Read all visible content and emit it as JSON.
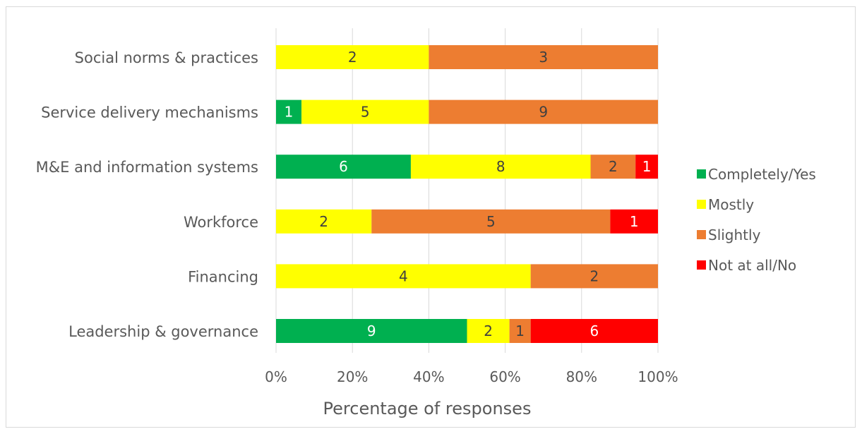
{
  "chart_data": {
    "type": "bar",
    "orientation": "horizontal",
    "stacking": "percent",
    "categories": [
      "Social norms & practices",
      "Service delivery mechanisms",
      "M&E and information systems",
      "Workforce",
      "Financing",
      "Leadership & governance"
    ],
    "series": [
      {
        "name": "Completely/Yes",
        "color": "#00b050",
        "label_color": "#ffffff",
        "values": [
          0,
          1,
          6,
          0,
          0,
          9
        ]
      },
      {
        "name": "Mostly",
        "color": "#ffff00",
        "label_color": "#404040",
        "values": [
          2,
          5,
          8,
          2,
          4,
          2
        ]
      },
      {
        "name": "Slightly",
        "color": "#ed7d31",
        "label_color": "#404040",
        "values": [
          3,
          9,
          2,
          5,
          2,
          1
        ]
      },
      {
        "name": "Not at all/No",
        "color": "#ff0000",
        "label_color": "#ffffff",
        "values": [
          0,
          0,
          1,
          1,
          0,
          6
        ]
      }
    ],
    "x_ticks": [
      "0%",
      "20%",
      "40%",
      "60%",
      "80%",
      "100%"
    ],
    "xlim": [
      0,
      100
    ],
    "xlabel": "Percentage of responses",
    "ylabel": "",
    "title": "",
    "grid": "vertical",
    "grid_color": "#d9d9d9",
    "legend_position": "right",
    "text_color": "#595959"
  }
}
